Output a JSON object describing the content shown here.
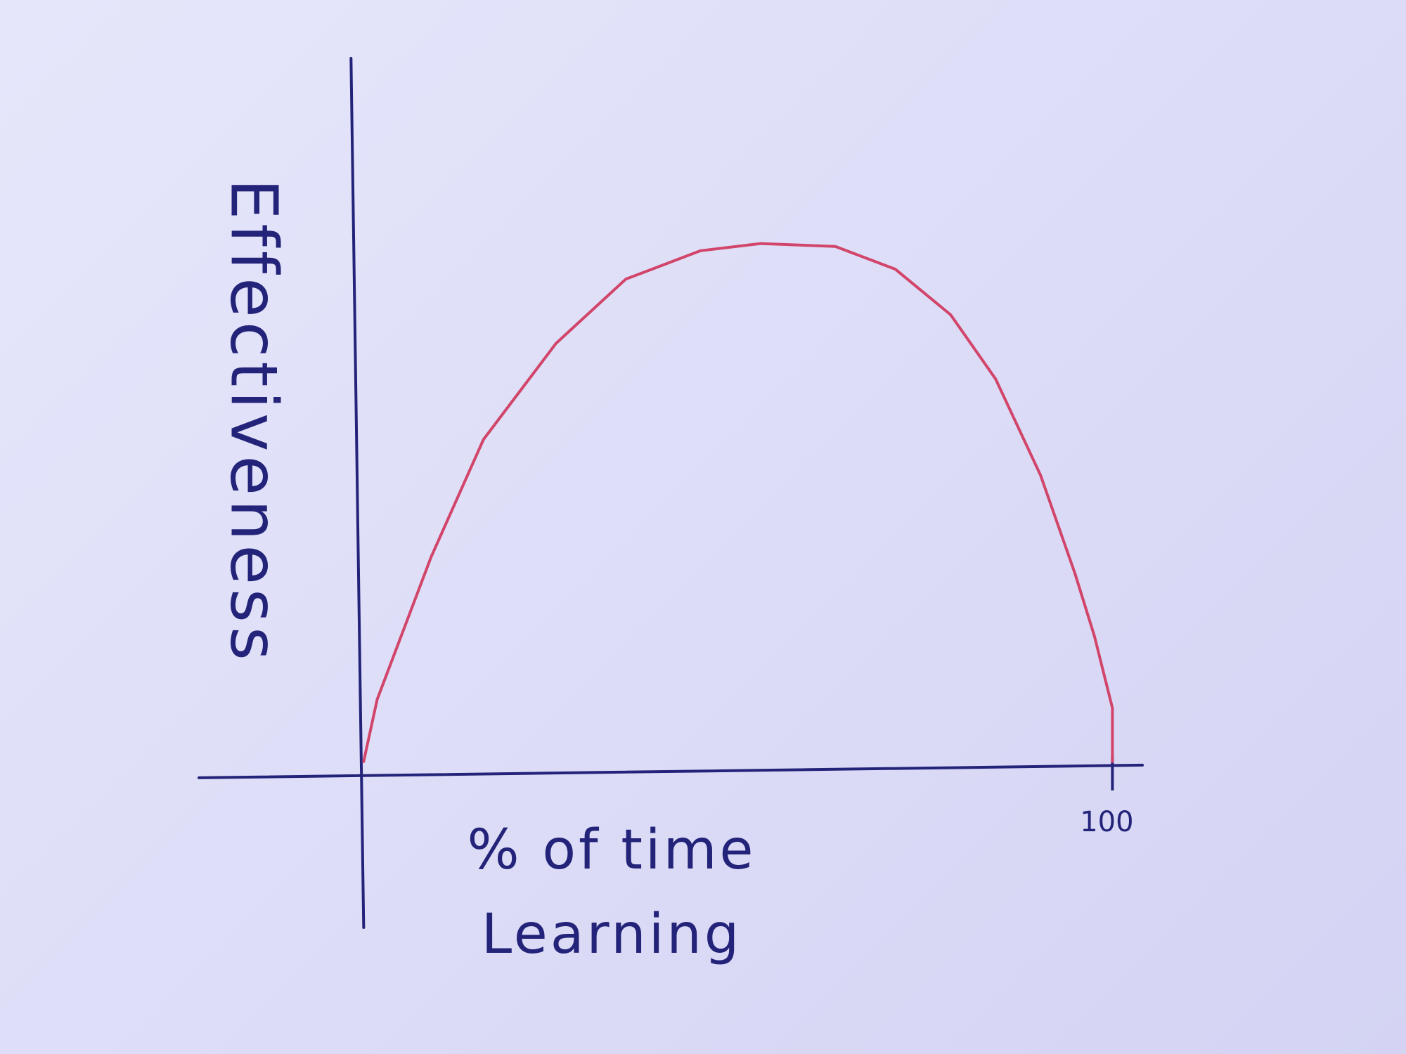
{
  "chart_data": {
    "type": "line",
    "x_label": "% of time Learning",
    "y_label": "Effectiveness",
    "x": [
      0,
      1.8,
      9,
      16,
      25.7,
      35,
      45,
      53,
      63,
      71,
      78.4,
      84.4,
      90.4,
      95,
      97.6,
      100,
      100
    ],
    "values": [
      1.3,
      10,
      30,
      46.5,
      60,
      69,
      73,
      74,
      73.6,
      70.4,
      64,
      55,
      41.5,
      27.7,
      18.9,
      8.8,
      1.3
    ],
    "color": "#d2456a",
    "axis_color": "#23237a",
    "xlim": [
      -22,
      104
    ],
    "ylim": [
      -22,
      100
    ],
    "xticks": [
      100
    ]
  }
}
